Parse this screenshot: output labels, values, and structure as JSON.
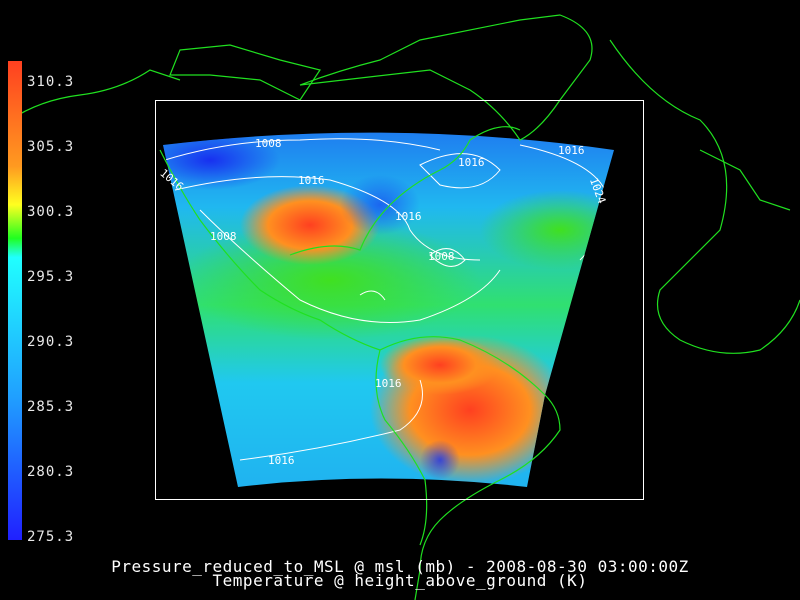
{
  "colorbar": {
    "unit": "K",
    "min": 275.3,
    "max": 310.3,
    "tick_labels": [
      "310.3",
      "305.3",
      "300.3",
      "295.3",
      "290.3",
      "285.3",
      "280.3",
      "275.3"
    ],
    "colors": [
      "#ff4020",
      "#ff9a20",
      "#ffff20",
      "#20ff20",
      "#20ffff",
      "#20a0ff",
      "#2020ff"
    ]
  },
  "contour_labels": [
    "1008",
    "1016",
    "1016",
    "1016",
    "1016",
    "1016",
    "1008",
    "1008",
    "1016",
    "1016",
    "1024"
  ],
  "title": {
    "line1": "Pressure_reduced_to_MSL @ msl (mb) - 2008-08-30 03:00:00Z",
    "line2": "Temperature @ height_above_ground (K)"
  },
  "colors": {
    "coastline": "#20e020",
    "contour": "#ffffff",
    "background": "#000000"
  }
}
